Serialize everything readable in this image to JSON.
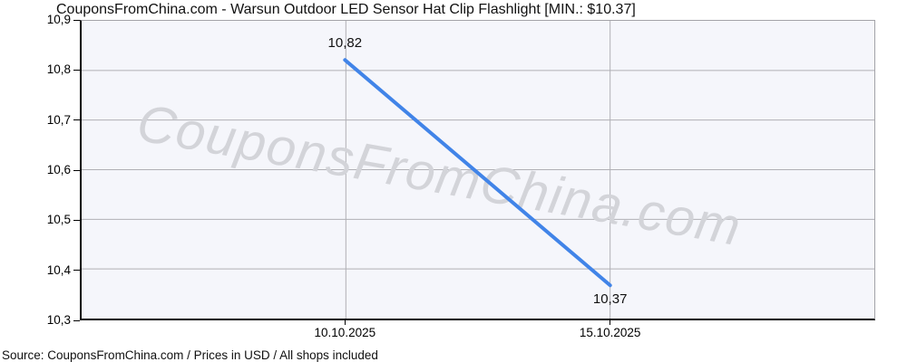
{
  "title": "CouponsFromChina.com - Warsun Outdoor LED Sensor Hat Clip Flashlight [MIN.: $10.37]",
  "watermark": "CouponsFromChina.com",
  "footer": "Source: CouponsFromChina.com / Prices in USD / All shops included",
  "colors": {
    "line": "#4184e8",
    "grid": "#b0b0b5",
    "plot_bg": "#f5f6fb",
    "axis": "#000000",
    "border": "#a3a3a8",
    "watermark": "#d3d4d9"
  },
  "chart_data": {
    "type": "line",
    "title": "CouponsFromChina.com - Warsun Outdoor LED Sensor Hat Clip Flashlight [MIN.: $10.37]",
    "xlabel": "",
    "ylabel": "",
    "xlim": [
      5,
      20
    ],
    "ylim": [
      10.3,
      10.9
    ],
    "grid": true,
    "legend": false,
    "yticks": [
      10.9,
      10.8,
      10.7,
      10.6,
      10.5,
      10.4,
      10.3
    ],
    "ytick_labels": [
      "10,9",
      "10,8",
      "10,7",
      "10,6",
      "10,5",
      "10,4",
      "10,3"
    ],
    "x": [
      10,
      15
    ],
    "categories": [
      "10.10.2025",
      "15.10.2025"
    ],
    "values": [
      10.82,
      10.37
    ],
    "points": [
      {
        "date": "10.10.2025",
        "x": 10,
        "value": 10.82,
        "label": "10,82"
      },
      {
        "date": "15.10.2025",
        "x": 15,
        "value": 10.37,
        "label": "10,37"
      }
    ]
  }
}
